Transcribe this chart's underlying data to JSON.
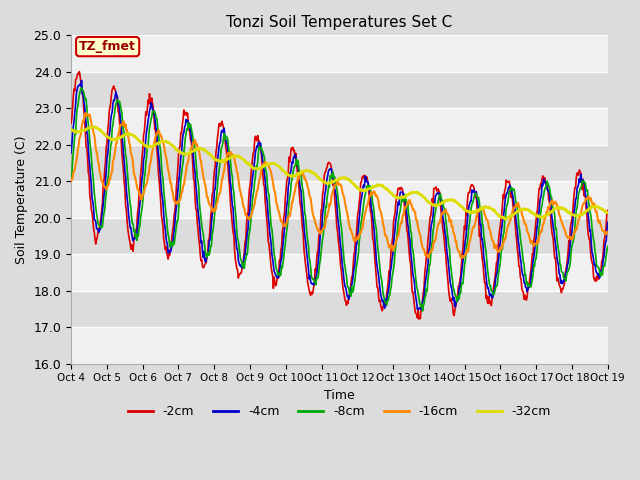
{
  "title": "Tonzi Soil Temperatures Set C",
  "xlabel": "Time",
  "ylabel": "Soil Temperature (C)",
  "ylim": [
    16.0,
    25.0
  ],
  "yticks": [
    16.0,
    17.0,
    18.0,
    19.0,
    20.0,
    21.0,
    22.0,
    23.0,
    24.0,
    25.0
  ],
  "xtick_labels": [
    "Oct 4",
    "Oct 5",
    "Oct 6",
    "Oct 7",
    "Oct 8",
    "Oct 9",
    "Oct 10",
    "Oct 11",
    "Oct 12",
    "Oct 13",
    "Oct 14",
    "Oct 15",
    "Oct 16",
    "Oct 17",
    "Oct 18",
    "Oct 19"
  ],
  "annotation_text": "TZ_fmet",
  "annotation_bg": "#ffffcc",
  "annotation_border": "#cc0000",
  "background_color": "#dcdcdc",
  "series": {
    "-2cm": {
      "color": "#dd0000",
      "linewidth": 1.2
    },
    "-4cm": {
      "color": "#0000cc",
      "linewidth": 1.2
    },
    "-8cm": {
      "color": "#00aa00",
      "linewidth": 1.2
    },
    "-16cm": {
      "color": "#ff8800",
      "linewidth": 1.5
    },
    "-32cm": {
      "color": "#dddd00",
      "linewidth": 2.0
    }
  },
  "legend_order": [
    "-2cm",
    "-4cm",
    "-8cm",
    "-16cm",
    "-32cm"
  ],
  "num_points": 720,
  "figsize": [
    6.4,
    4.8
  ],
  "dpi": 100
}
